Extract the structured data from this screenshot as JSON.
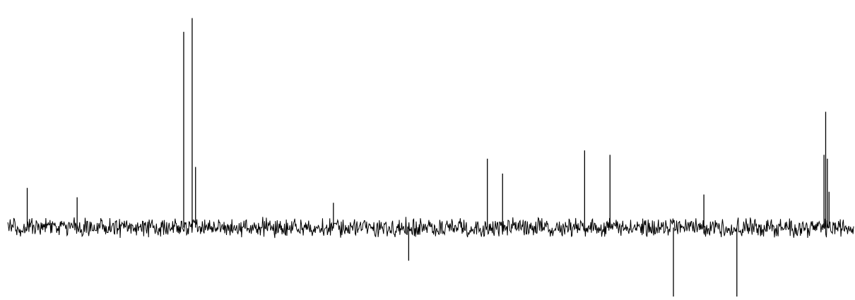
{
  "chart_data": {
    "type": "line",
    "title": "",
    "xlabel": "",
    "ylabel": "",
    "axes_visible": false,
    "grid": false,
    "legend": "none",
    "line_color": "#000000",
    "background_color": "#ffffff",
    "x_range": [
      0,
      1
    ],
    "y_range": [
      -1.3,
      4.0
    ],
    "baseline": 0,
    "noise_amplitude": 0.13,
    "series": [
      {
        "peaks": [
          {
            "x": 0.023,
            "y": 0.72
          },
          {
            "x": 0.082,
            "y": 0.55
          },
          {
            "x": 0.208,
            "y": 3.55
          },
          {
            "x": 0.218,
            "y": 3.8
          },
          {
            "x": 0.222,
            "y": 1.1
          },
          {
            "x": 0.385,
            "y": 0.45
          },
          {
            "x": 0.474,
            "y": -0.6
          },
          {
            "x": 0.567,
            "y": 1.25
          },
          {
            "x": 0.585,
            "y": 0.98
          },
          {
            "x": 0.682,
            "y": 1.4
          },
          {
            "x": 0.712,
            "y": 1.32
          },
          {
            "x": 0.787,
            "y": -1.25
          },
          {
            "x": 0.823,
            "y": 0.6
          },
          {
            "x": 0.862,
            "y": -1.25
          },
          {
            "x": 0.965,
            "y": 1.32
          },
          {
            "x": 0.967,
            "y": 2.1
          },
          {
            "x": 0.969,
            "y": 1.25
          },
          {
            "x": 0.971,
            "y": 0.65
          }
        ]
      }
    ]
  }
}
